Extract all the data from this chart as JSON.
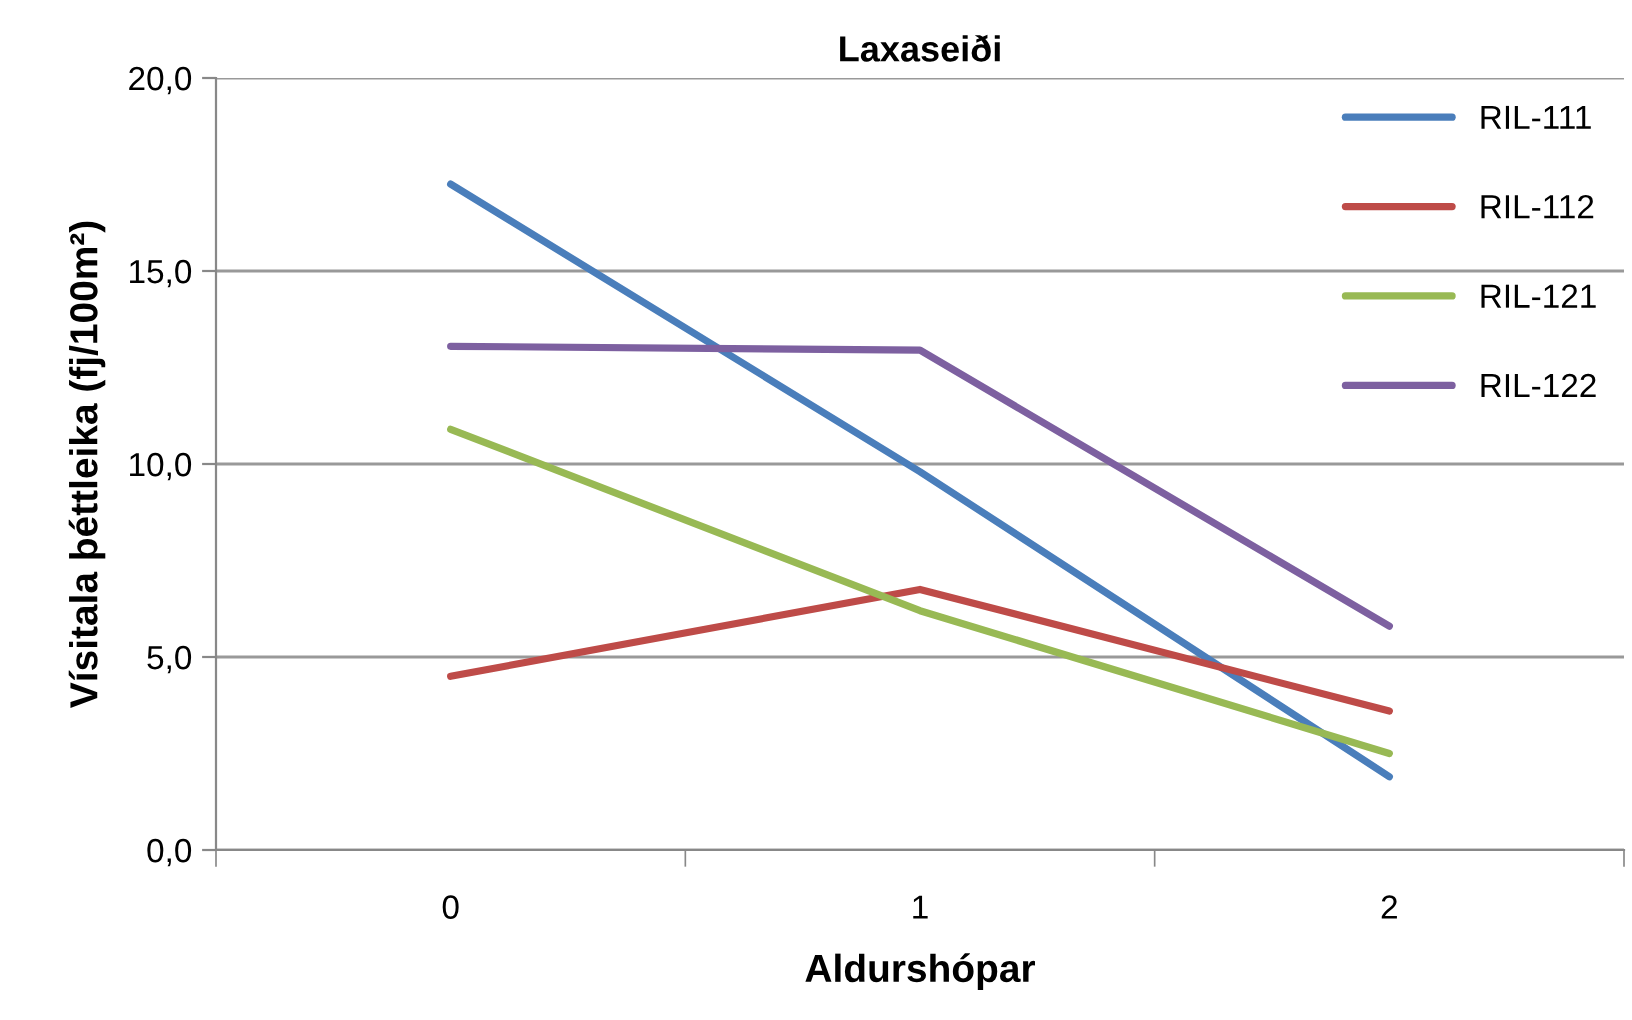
{
  "chart_data": {
    "type": "line",
    "title": "Laxaseiði",
    "xlabel": "Aldurshópar",
    "ylabel": "Vísitala þéttleika (fj/100m²)",
    "categories": [
      "0",
      "1",
      "2"
    ],
    "series": [
      {
        "name": "RIL-111",
        "color": "#4a7ebb",
        "values": [
          17.25,
          9.8,
          1.9
        ]
      },
      {
        "name": "RIL-112",
        "color": "#be4b48",
        "values": [
          4.5,
          6.75,
          3.6
        ]
      },
      {
        "name": "RIL-121",
        "color": "#98b954",
        "values": [
          10.9,
          6.2,
          2.5
        ]
      },
      {
        "name": "RIL-122",
        "color": "#7d60a0",
        "values": [
          13.05,
          12.95,
          5.8
        ]
      }
    ],
    "ylim": [
      0,
      20
    ],
    "yticks": [
      {
        "value": 0,
        "label": "0,0"
      },
      {
        "value": 5,
        "label": "5,0"
      },
      {
        "value": 10,
        "label": "10,0"
      },
      {
        "value": 15,
        "label": "15,0"
      },
      {
        "value": 20,
        "label": "20,0"
      }
    ],
    "grid": "y",
    "legend": "top right",
    "marker": "none",
    "line_style": "solid"
  }
}
